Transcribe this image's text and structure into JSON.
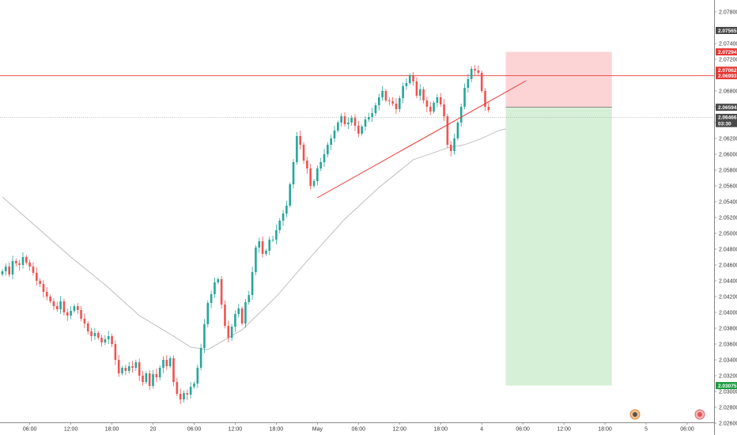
{
  "chart_data": {
    "type": "candlestick",
    "title": "",
    "price_axis": {
      "range": [
        2.0245,
        2.0795
      ],
      "ticks": [
        "2.07800",
        "2.07400",
        "2.07200",
        "2.06800",
        "2.06600",
        "2.06400",
        "2.06200",
        "2.06000",
        "2.05800",
        "2.05600",
        "2.05400",
        "2.05200",
        "2.05000",
        "2.04800",
        "2.04600",
        "2.04400",
        "2.04200",
        "2.04000",
        "2.03800",
        "2.03600",
        "2.03400",
        "2.03200",
        "2.03000",
        "2.02800",
        "2.02600"
      ]
    },
    "time_axis": {
      "labels": [
        {
          "bar": 8,
          "text": "06:00"
        },
        {
          "bar": 20,
          "text": "12:00"
        },
        {
          "bar": 32,
          "text": "18:00"
        },
        {
          "bar": 44,
          "text": "20"
        },
        {
          "bar": 56,
          "text": "06:00"
        },
        {
          "bar": 68,
          "text": "12:00"
        },
        {
          "bar": 80,
          "text": "18:00"
        },
        {
          "bar": 92,
          "text": "May"
        },
        {
          "bar": 104,
          "text": "06:00"
        },
        {
          "bar": 116,
          "text": "12:00"
        },
        {
          "bar": 128,
          "text": "18:00"
        },
        {
          "bar": 140,
          "text": "4"
        },
        {
          "bar": 152,
          "text": "06:00"
        },
        {
          "bar": 164,
          "text": "12:00"
        },
        {
          "bar": 176,
          "text": "18:00"
        },
        {
          "bar": 188,
          "text": "5"
        },
        {
          "bar": 200,
          "text": "06:00"
        }
      ]
    },
    "closes": [
      2.0452,
      2.0458,
      2.0448,
      2.0465,
      2.0462,
      2.046,
      2.047,
      2.0463,
      2.0458,
      2.045,
      2.044,
      2.0436,
      2.0426,
      2.042,
      2.0414,
      2.0408,
      2.0404,
      2.0414,
      2.04,
      2.0396,
      2.0402,
      2.0408,
      2.0403,
      2.0392,
      2.0386,
      2.0376,
      2.037,
      2.0374,
      2.0368,
      2.0362,
      2.0366,
      2.037,
      2.036,
      2.034,
      2.0323,
      2.033,
      2.0326,
      2.0332,
      2.033,
      2.0337,
      2.032,
      2.0312,
      2.0323,
      2.0307,
      2.0322,
      2.0318,
      2.033,
      2.034,
      2.0332,
      2.0342,
      2.0312,
      2.0297,
      2.029,
      2.0298,
      2.0296,
      2.0306,
      2.031,
      2.033,
      2.0355,
      2.0385,
      2.0412,
      2.0423,
      2.0438,
      2.0442,
      2.041,
      2.0383,
      2.0368,
      2.0382,
      2.0398,
      2.0405,
      2.0386,
      2.0413,
      2.0422,
      2.0451,
      2.0482,
      2.049,
      2.0474,
      2.0478,
      2.0492,
      2.0492,
      2.0504,
      2.0516,
      2.0525,
      2.0535,
      2.0562,
      2.059,
      2.0623,
      2.0612,
      2.0592,
      2.0582,
      2.056,
      2.0566,
      2.0582,
      2.059,
      2.06,
      2.0612,
      2.062,
      2.063,
      2.064,
      2.0648,
      2.0638,
      2.064,
      2.0646,
      2.0636,
      2.0626,
      2.0635,
      2.0644,
      2.0647,
      2.0652,
      2.0662,
      2.0672,
      2.068,
      2.0668,
      2.0667,
      2.0664,
      2.0657,
      2.0671,
      2.0686,
      2.069,
      2.07,
      2.0692,
      2.0674,
      2.0682,
      2.0668,
      2.066,
      2.0654,
      2.0665,
      2.0672,
      2.0663,
      2.0648,
      2.0612,
      2.0604,
      2.062,
      2.064,
      2.066,
      2.0684,
      2.0695,
      2.0708,
      2.0706,
      2.0703,
      2.068,
      2.066,
      2.0656
    ],
    "moving_average": [
      [
        0,
        2.0546
      ],
      [
        10,
        2.0508
      ],
      [
        20,
        2.047
      ],
      [
        30,
        2.0435
      ],
      [
        40,
        2.0396
      ],
      [
        50,
        2.037
      ],
      [
        55,
        2.0356
      ],
      [
        60,
        2.0353
      ],
      [
        70,
        2.0378
      ],
      [
        80,
        2.042
      ],
      [
        90,
        2.047
      ],
      [
        100,
        2.0518
      ],
      [
        110,
        2.0558
      ],
      [
        120,
        2.0593
      ],
      [
        130,
        2.0608
      ],
      [
        135,
        2.0612
      ],
      [
        140,
        2.062
      ],
      [
        145,
        2.063
      ],
      [
        147,
        2.0632
      ]
    ],
    "trendline": {
      "from": [
        92,
        2.0545
      ],
      "to": [
        153,
        2.0693
      ]
    },
    "horizontal_line": 2.06993,
    "current_price_line": 2.06466,
    "position": {
      "start_bar": 147,
      "end_bar": 178,
      "entry": 2.06594,
      "stop": 2.07294,
      "target": 2.03075,
      "stop_color": "#fcd4d6",
      "target_color": "#d6f0d8"
    },
    "price_tags": [
      {
        "value": 2.07565,
        "text": "2.07565",
        "color": "#4a4a4a"
      },
      {
        "value": 2.07294,
        "text": "2.07294",
        "color": "#e53935"
      },
      {
        "value": 2.07062,
        "text": "2.07062",
        "color": "#e53935"
      },
      {
        "value": 2.06993,
        "text": "2.06993",
        "color": "#e53935"
      },
      {
        "value": 2.06594,
        "text": "2.06594",
        "color": "#4a4a4a"
      },
      {
        "value": 2.06466,
        "text": "2.06466",
        "color": "#4a4a4a"
      },
      {
        "value": 2.06388,
        "text": "03:30",
        "color": "#4a4a4a"
      },
      {
        "value": 2.03075,
        "text": "2.03075",
        "color": "#1e9e43"
      }
    ],
    "colors": {
      "up": "#26a69a",
      "down": "#ef5350",
      "line": "#e53935",
      "ma": "#b8b8b8",
      "axis": "#888888"
    },
    "icons": [
      "calendar-event-icon",
      "dividend-event-icon"
    ]
  }
}
